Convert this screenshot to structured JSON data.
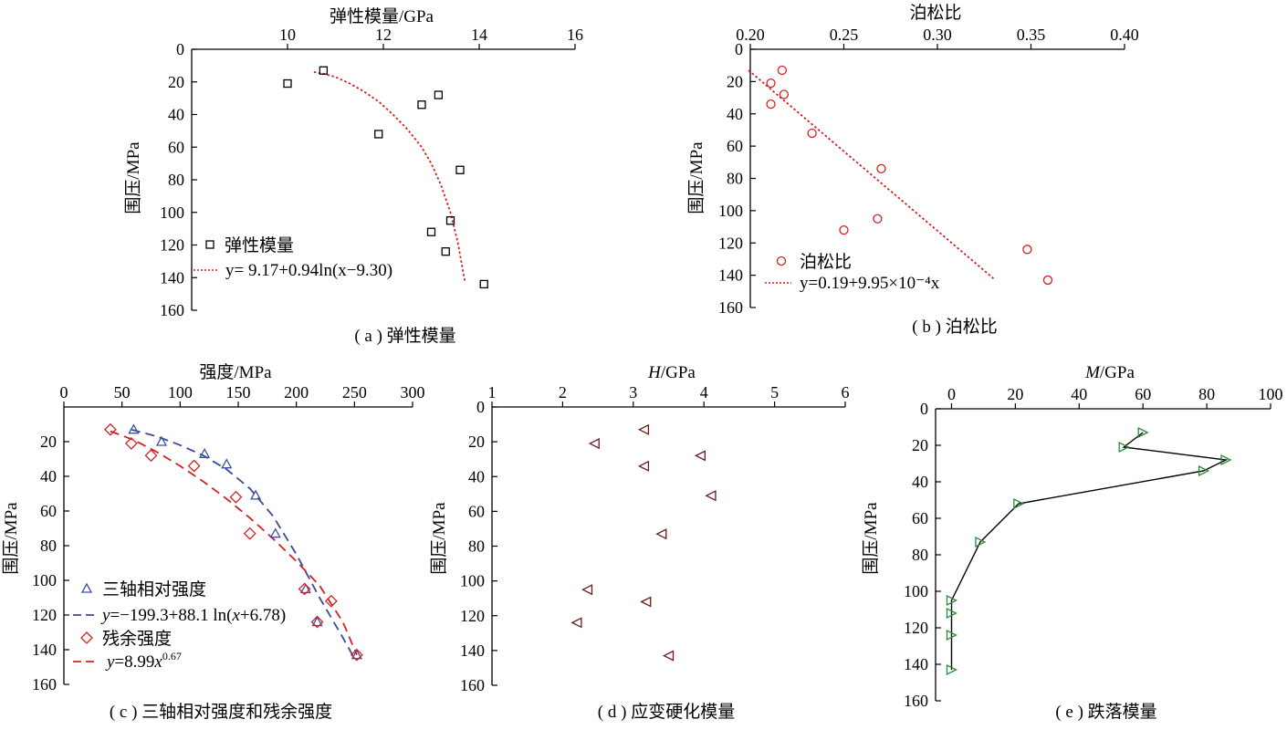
{
  "chart_data": [
    {
      "id": "a",
      "type": "scatter",
      "caption": "( a ) 弹性模量",
      "xlabel": "弹性模量/GPa",
      "ylabel": "围压/MPa",
      "xlim": [
        8,
        16
      ],
      "ylim": [
        0,
        160
      ],
      "xticks": [
        10,
        12,
        14,
        16
      ],
      "yticks": [
        0,
        20,
        40,
        60,
        80,
        100,
        120,
        140,
        160
      ],
      "y_reversed": true,
      "x_axis_position": "top",
      "legend_position": "bottom-left",
      "series": [
        {
          "name": "弹性模量",
          "marker": "square",
          "color": "#000000",
          "x": [
            10.0,
            10.75,
            11.9,
            12.8,
            13.15,
            13.6,
            13.0,
            13.4,
            13.3,
            14.1
          ],
          "y": [
            21,
            13,
            52,
            34,
            28,
            74,
            112,
            105,
            124,
            144
          ]
        }
      ],
      "fits": [
        {
          "name": "y= 9.17+0.94ln(x−9.30)",
          "color": "#d62020",
          "dash": "dot",
          "x": [
            10.55,
            10.75,
            11.0,
            11.3,
            11.6,
            11.9,
            12.2,
            12.5,
            12.8,
            13.0,
            13.2,
            13.4,
            13.55,
            13.7
          ],
          "y": [
            14,
            15,
            17,
            21,
            26,
            32,
            40,
            49,
            60,
            70,
            83,
            100,
            118,
            142
          ]
        }
      ]
    },
    {
      "id": "b",
      "type": "scatter",
      "caption": "( b ) 泊松比",
      "xlabel": "泊松比",
      "ylabel": "围压/MPa",
      "xlim": [
        0.2,
        0.4
      ],
      "ylim": [
        0,
        160
      ],
      "xticks": [
        "0.20",
        "0.25",
        "0.30",
        "0.35",
        "0.40"
      ],
      "yticks": [
        0,
        20,
        40,
        60,
        80,
        100,
        120,
        140,
        160
      ],
      "y_reversed": true,
      "x_axis_position": "top",
      "legend_position": "bottom-left",
      "series": [
        {
          "name": "泊松比",
          "marker": "circle",
          "color": "#d62020",
          "x": [
            0.217,
            0.211,
            0.218,
            0.211,
            0.233,
            0.27,
            0.268,
            0.25,
            0.348,
            0.359
          ],
          "y": [
            13,
            21,
            28,
            34,
            52,
            74,
            105,
            112,
            124,
            143
          ]
        }
      ],
      "fits": [
        {
          "name": "y=0.19+9.95×10⁻⁴x",
          "color": "#d62020",
          "dash": "dot",
          "x": [
            0.199,
            0.33
          ],
          "y": [
            13,
            142
          ]
        }
      ]
    },
    {
      "id": "c",
      "type": "scatter",
      "caption": "( c ) 三轴相对强度和残余强度",
      "xlabel": "强度/MPa",
      "ylabel": "围压/MPa",
      "xlim": [
        0,
        300
      ],
      "ylim": [
        0,
        160
      ],
      "xticks": [
        0,
        50,
        100,
        150,
        200,
        250,
        300
      ],
      "yticks": [
        20,
        40,
        60,
        80,
        100,
        120,
        140,
        160
      ],
      "y_reversed": true,
      "x_axis_position": "top",
      "legend_position": "bottom-left",
      "series": [
        {
          "name": "三轴相对强度",
          "marker": "triangle-up",
          "color": "#4050a0",
          "x": [
            60,
            84,
            121,
            140,
            165,
            182,
            208,
            218,
            252
          ],
          "y": [
            13,
            20,
            27,
            33,
            51,
            73,
            105,
            124,
            143
          ]
        },
        {
          "name": "残余强度",
          "marker": "diamond",
          "color": "#d62020",
          "x": [
            40,
            58,
            75,
            112,
            148,
            160,
            207,
            230,
            218,
            252
          ],
          "y": [
            13,
            21,
            28,
            34,
            52,
            73,
            105,
            112,
            124,
            143
          ]
        }
      ],
      "fits": [
        {
          "name": "y=−199.3+88.1 ln(x+6.78)",
          "color": "#3a4a9a",
          "dash": "dash",
          "x": [
            58,
            80,
            100,
            120,
            140,
            160,
            180,
            200,
            220,
            240,
            250
          ],
          "y": [
            13,
            17,
            22,
            28,
            36,
            47,
            63,
            85,
            110,
            133,
            145
          ]
        },
        {
          "name": "y=8.99x^0.67",
          "color": "#d62020",
          "dash": "dash",
          "x": [
            40,
            60,
            80,
            100,
            120,
            140,
            160,
            180,
            200,
            220,
            240,
            252
          ],
          "y": [
            14,
            19,
            26,
            34,
            43,
            53,
            64,
            76,
            89,
            103,
            124,
            143
          ]
        }
      ],
      "legend_labels": {
        "s1": "三轴相对强度",
        "f1_prefix": "y",
        "f1_body": "=−199.3+88.1 ln(",
        "f1_x": "x",
        "f1_tail": "+6.78)",
        "s2": "残余强度",
        "f2_prefix": "y",
        "f2_body": "=8.99",
        "f2_x": "x",
        "f2_exp": "0.67"
      }
    },
    {
      "id": "d",
      "type": "scatter",
      "caption": "( d ) 应变硬化模量",
      "xlabel": "H/GPa",
      "ylabel": "围压/MPa",
      "xlim": [
        1,
        6
      ],
      "ylim": [
        0,
        160
      ],
      "xticks": [
        1,
        2,
        3,
        4,
        5,
        6
      ],
      "yticks": [
        0,
        20,
        40,
        60,
        80,
        100,
        120,
        140,
        160
      ],
      "y_reversed": true,
      "x_axis_position": "top",
      "series": [
        {
          "name": "",
          "marker": "triangle-left",
          "color": "#6a1a1a",
          "x": [
            3.15,
            2.45,
            3.15,
            3.95,
            4.1,
            3.4,
            2.35,
            3.18,
            2.2,
            3.5
          ],
          "y": [
            13,
            21,
            34,
            28,
            51,
            73,
            105,
            112,
            124,
            143
          ]
        }
      ]
    },
    {
      "id": "e",
      "type": "line",
      "caption": "( e ) 跌落模量",
      "xlabel": "M/GPa",
      "ylabel": "围压/MPa",
      "xlim": [
        -5,
        100
      ],
      "ylim": [
        0,
        160
      ],
      "xticks": [
        0,
        20,
        40,
        60,
        80,
        100
      ],
      "yticks": [
        0,
        20,
        40,
        60,
        80,
        100,
        120,
        140,
        160
      ],
      "y_reversed": true,
      "x_axis_position": "top",
      "series": [
        {
          "name": "",
          "marker": "triangle-right",
          "color": "#2a8a3a",
          "x": [
            60,
            54,
            86,
            79,
            21,
            9,
            0,
            0,
            0,
            0
          ],
          "y": [
            13,
            21,
            28,
            34,
            52,
            73,
            105,
            112,
            124,
            143
          ]
        }
      ]
    }
  ]
}
